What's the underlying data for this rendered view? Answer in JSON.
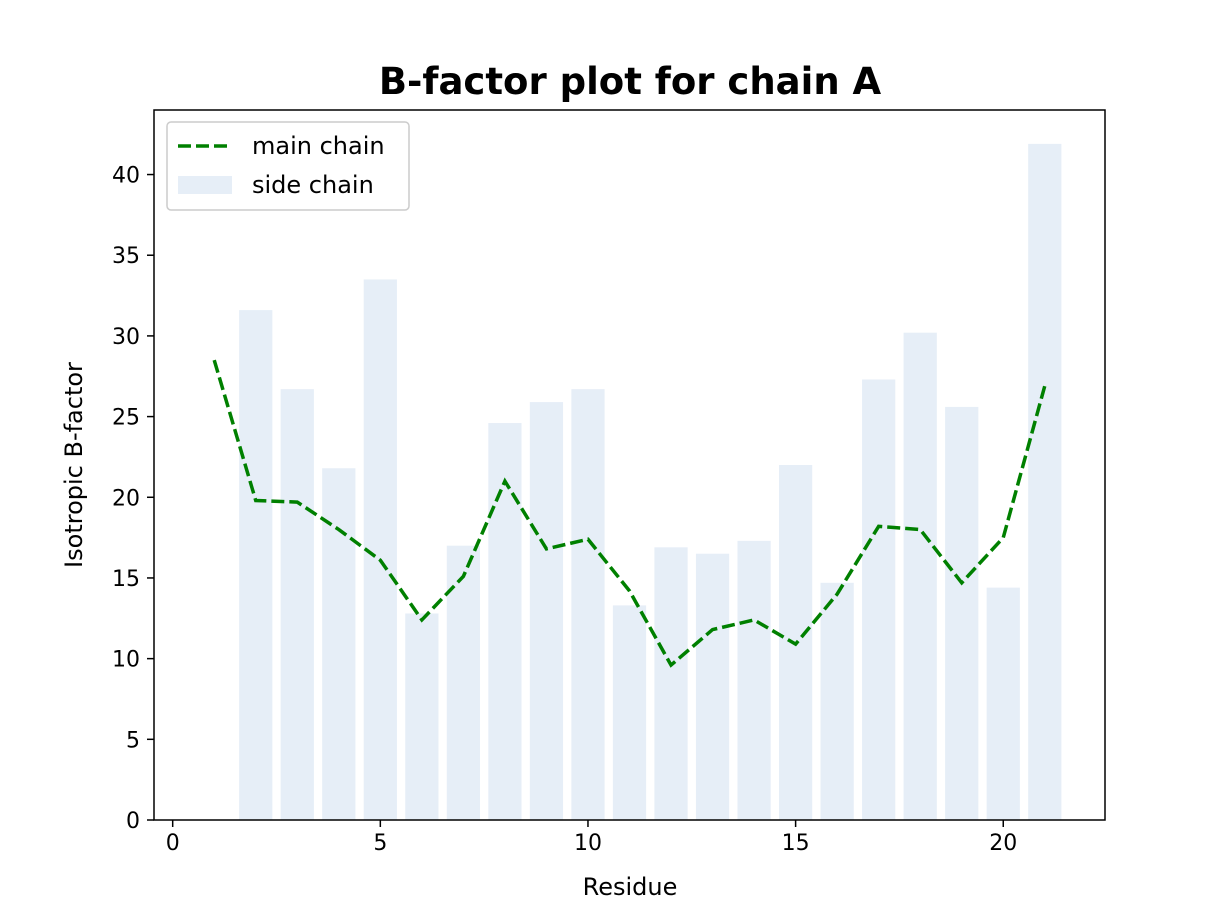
{
  "chart_data": {
    "type": "bar",
    "title": "B-factor plot for chain A",
    "xlabel": "Residue",
    "ylabel": "Isotropic B-factor",
    "xlim": [
      -0.45,
      22.45
    ],
    "ylim": [
      0,
      44
    ],
    "xticks": [
      0,
      5,
      10,
      15,
      20
    ],
    "yticks": [
      0,
      5,
      10,
      15,
      20,
      25,
      30,
      35,
      40
    ],
    "grid": false,
    "legend_position": "upper-left",
    "series": [
      {
        "name": "main chain",
        "type": "line",
        "style": "dashed",
        "color": "#008000",
        "x": [
          1,
          2,
          3,
          4,
          5,
          6,
          7,
          8,
          9,
          10,
          11,
          12,
          13,
          14,
          15,
          16,
          17,
          18,
          19,
          20,
          21
        ],
        "values": [
          28.5,
          19.8,
          19.7,
          18.0,
          16.1,
          12.4,
          15.1,
          21.0,
          16.8,
          17.4,
          14.2,
          9.6,
          11.8,
          12.4,
          10.9,
          14.0,
          18.2,
          18.0,
          14.7,
          17.5,
          26.9
        ]
      },
      {
        "name": "side chain",
        "type": "bar",
        "color": "#e6eef7",
        "x": [
          2,
          3,
          4,
          5,
          6,
          7,
          8,
          9,
          10,
          11,
          12,
          13,
          14,
          15,
          16,
          17,
          18,
          19,
          20,
          21
        ],
        "values": [
          31.6,
          26.7,
          21.8,
          33.5,
          12.8,
          17.0,
          24.6,
          25.9,
          26.7,
          13.3,
          16.9,
          16.5,
          17.3,
          22.0,
          14.7,
          27.3,
          30.2,
          25.6,
          14.4,
          41.9
        ]
      }
    ]
  }
}
